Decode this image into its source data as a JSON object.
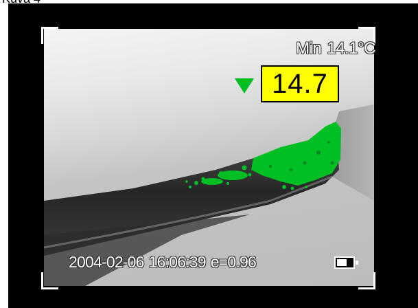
{
  "caption": "Kuva 4",
  "thermal": {
    "min_label": "Min",
    "min_value": "14.1",
    "unit": "°C",
    "spot_value": "14.7",
    "isotherm_color": "#00bf25",
    "spot_box_color": "#ffff00"
  },
  "status": {
    "date": "2004-02-06",
    "time": "16:06:39",
    "emissivity": "e=0.96"
  },
  "icons": {
    "min_marker": "down-triangle-icon",
    "battery": "battery-icon"
  }
}
